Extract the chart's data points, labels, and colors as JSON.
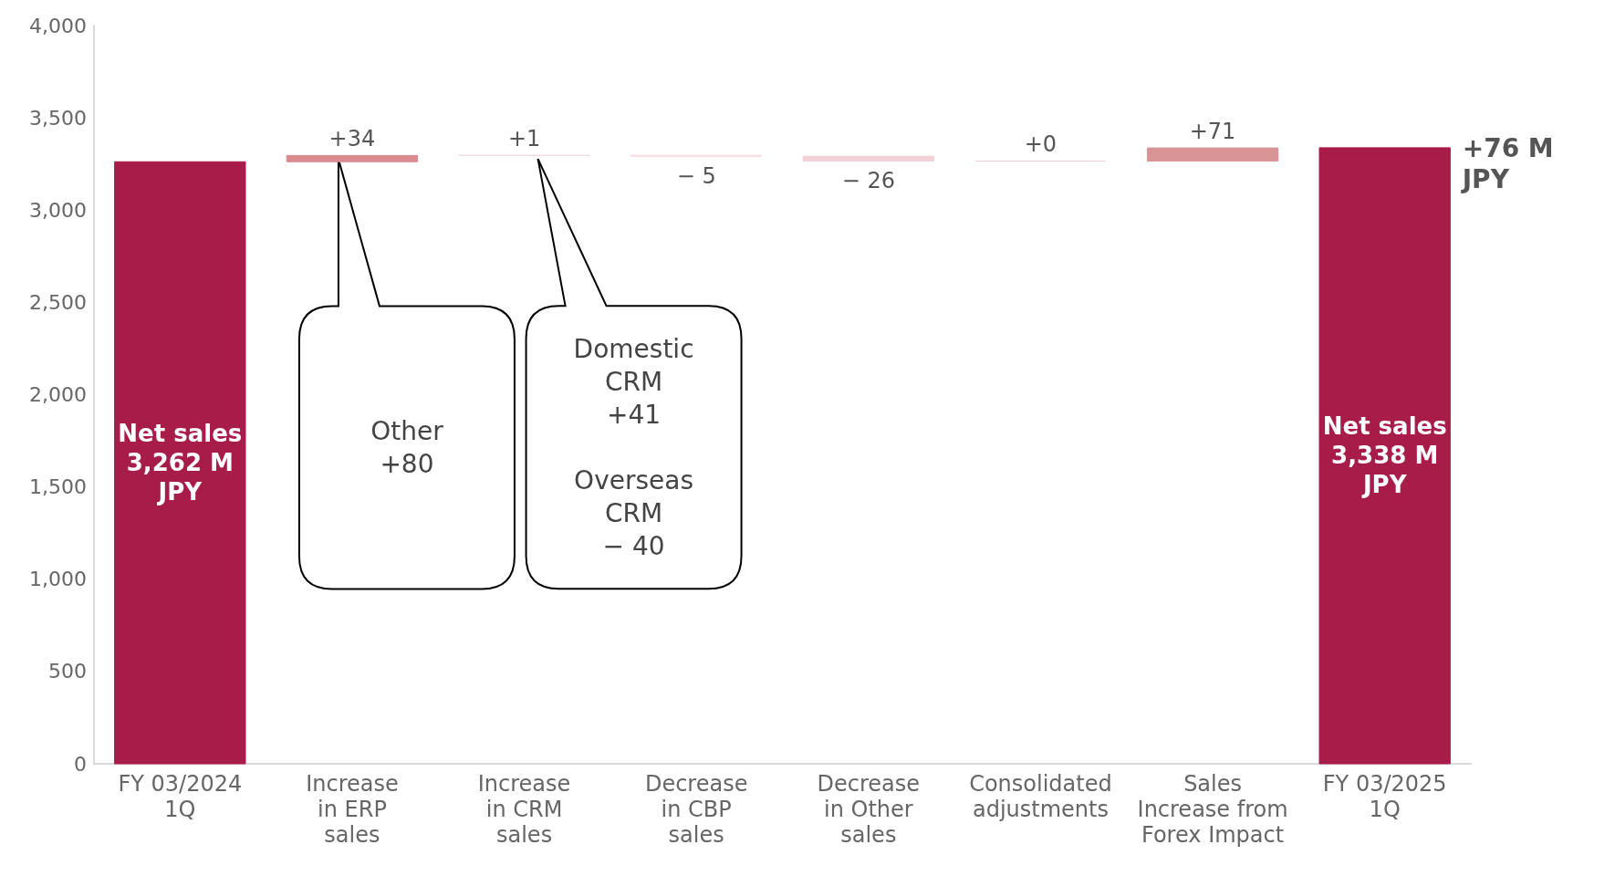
{
  "chart_data": {
    "type": "bar",
    "categories": [
      "FY 03/2024\n1Q",
      "Increase\nin ERP\nsales",
      "Increase\nin CRM\nsales",
      "Decrease\nin CBP\nsales",
      "Decrease\nin Other\nsales",
      "Consolidated\nadjustments",
      "Sales\nIncrease from\nForex Impact",
      "FY 03/2025\n1Q"
    ],
    "values": [
      3262,
      34,
      1,
      -5,
      -26,
      0,
      71,
      3338
    ],
    "base": [
      0,
      3262,
      3296,
      3297,
      3292,
      3266,
      3266,
      0
    ],
    "colors": [
      "#a81c4a",
      "#d98a8e",
      "#f5dadd",
      "#f5dadd",
      "#f2d2d6",
      "#f2d2d6",
      "#d99496",
      "#a81c4a"
    ],
    "value_labels": [
      "Net sales\n3,262 M\nJPY",
      "+34",
      "+1",
      "− 5",
      "− 26",
      "+0",
      "+71",
      "Net sales\n3,338 M\nJPY"
    ],
    "ylim": [
      0,
      4000
    ],
    "yticks": [
      0,
      {
        "value": 500,
        "label": "500"
      },
      {
        "value": 1000,
        "label": "1,000"
      },
      {
        "value": 1500,
        "label": "1,500"
      },
      {
        "value": 2000,
        "label": "2,000"
      },
      {
        "value": 2500,
        "label": "2,500"
      },
      {
        "value": 3000,
        "label": "3,000"
      },
      {
        "value": 3500,
        "label": "3,500"
      },
      {
        "value": 4000,
        "label": "4,000"
      }
    ],
    "grid": false,
    "annotations": [
      "Other\n+80",
      "Domestic\nCRM\n+41\n\nOverseas\nCRM\n− 40",
      "+76 M\nJPY"
    ]
  }
}
